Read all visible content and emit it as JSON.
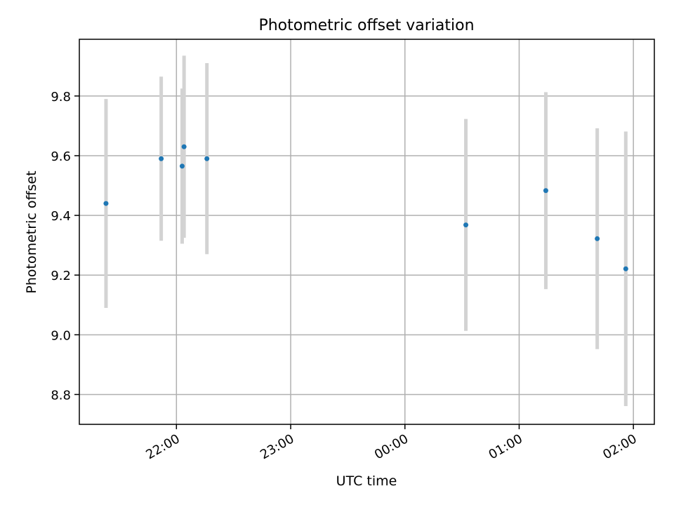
{
  "chart_data": {
    "type": "scatter",
    "title": "Photometric offset variation",
    "xlabel": "UTC time",
    "ylabel": "Photometric offset",
    "x_is_time": true,
    "xlim": [
      "21:09",
      "02:11"
    ],
    "ylim": [
      8.7,
      9.99
    ],
    "grid": true,
    "x_ticks": [
      "22:00",
      "23:00",
      "00:00",
      "01:00",
      "02:00"
    ],
    "y_ticks": [
      "8.8",
      "9.0",
      "9.2",
      "9.4",
      "9.6",
      "9.8"
    ],
    "colors": {
      "points": "#1f77b4",
      "errorbars": "#d3d3d3",
      "grid": "#b0b0b0"
    },
    "points": [
      {
        "t": "21:23",
        "y": 9.44,
        "yerr": 0.35
      },
      {
        "t": "21:52",
        "y": 9.59,
        "yerr": 0.275
      },
      {
        "t": "22:03",
        "y": 9.565,
        "yerr": 0.26
      },
      {
        "t": "22:04",
        "y": 9.63,
        "yerr": 0.305
      },
      {
        "t": "22:16",
        "y": 9.59,
        "yerr": 0.32
      },
      {
        "t": "00:32",
        "y": 9.368,
        "yerr": 0.355
      },
      {
        "t": "01:14",
        "y": 9.483,
        "yerr": 0.33
      },
      {
        "t": "01:41",
        "y": 9.322,
        "yerr": 0.37
      },
      {
        "t": "01:56",
        "y": 9.221,
        "yerr": 0.46
      }
    ]
  }
}
